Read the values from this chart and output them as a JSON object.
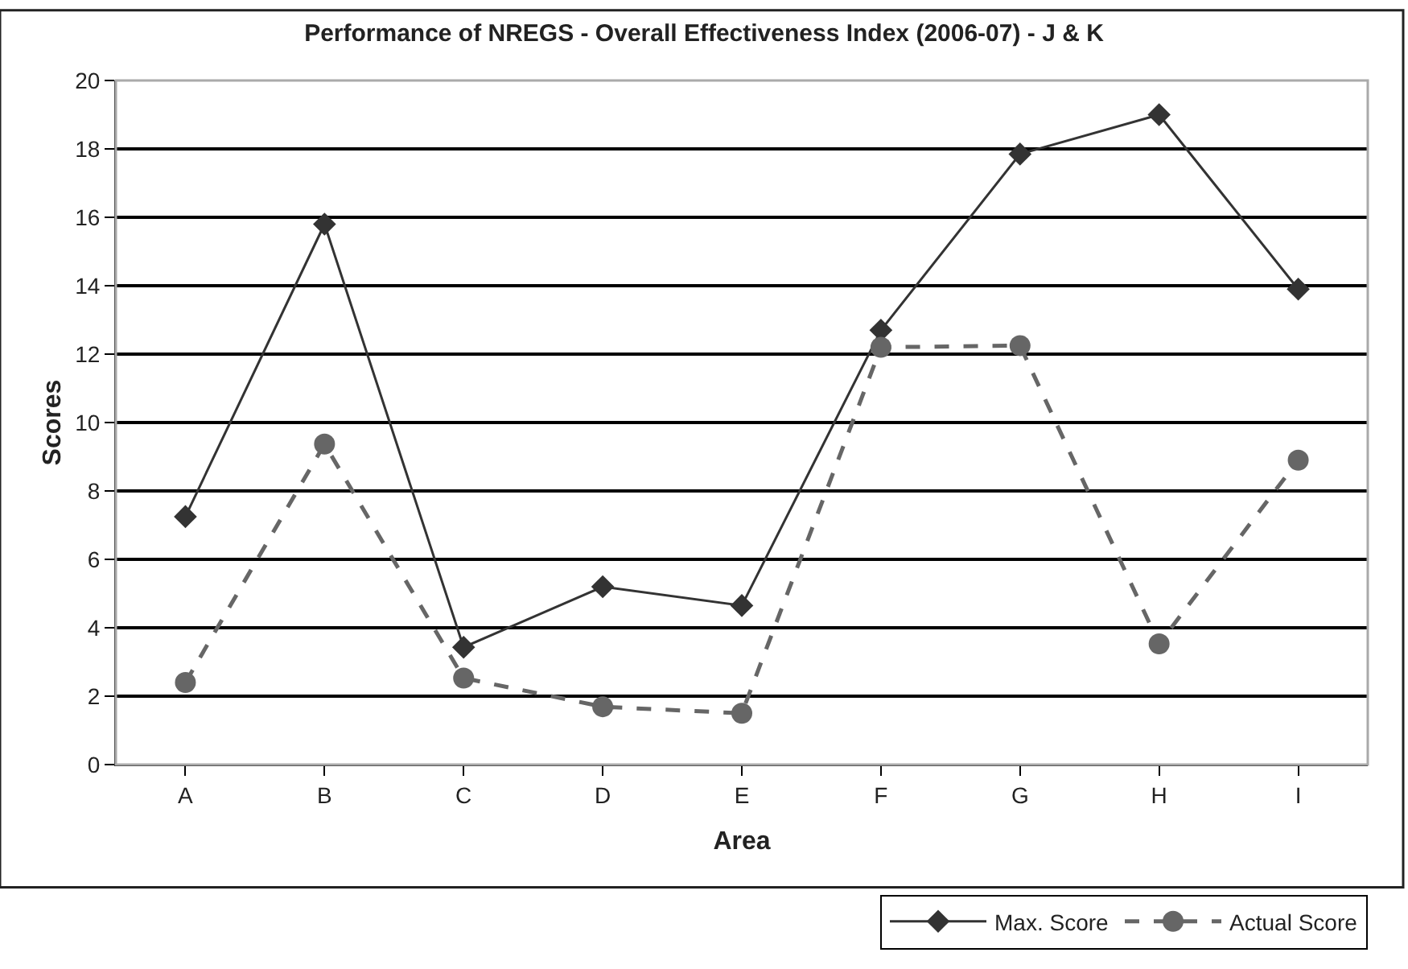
{
  "chart_data": {
    "type": "line",
    "title": "Performance of NREGS - Overall Effectiveness Index (2006-07) - J & K",
    "xlabel": "Area",
    "ylabel": "Scores",
    "categories": [
      "A",
      "B",
      "C",
      "D",
      "E",
      "F",
      "G",
      "H",
      "I"
    ],
    "series": [
      {
        "name": "Max. Score",
        "color": "#333333",
        "marker": "diamond",
        "line_style": "solid",
        "values": [
          7.25,
          15.8,
          3.43,
          5.2,
          4.65,
          12.7,
          17.85,
          19.0,
          13.9
        ]
      },
      {
        "name": "Actual Score",
        "color": "#666666",
        "marker": "circle",
        "line_style": "dashed",
        "values": [
          2.4,
          9.37,
          2.53,
          1.69,
          1.5,
          12.2,
          12.25,
          3.53,
          8.9
        ]
      }
    ],
    "ylim": [
      0,
      20
    ],
    "yticks": [
      0,
      2,
      4,
      6,
      8,
      10,
      12,
      14,
      16,
      18,
      20
    ],
    "grid": "y",
    "legend": "bottom right"
  }
}
